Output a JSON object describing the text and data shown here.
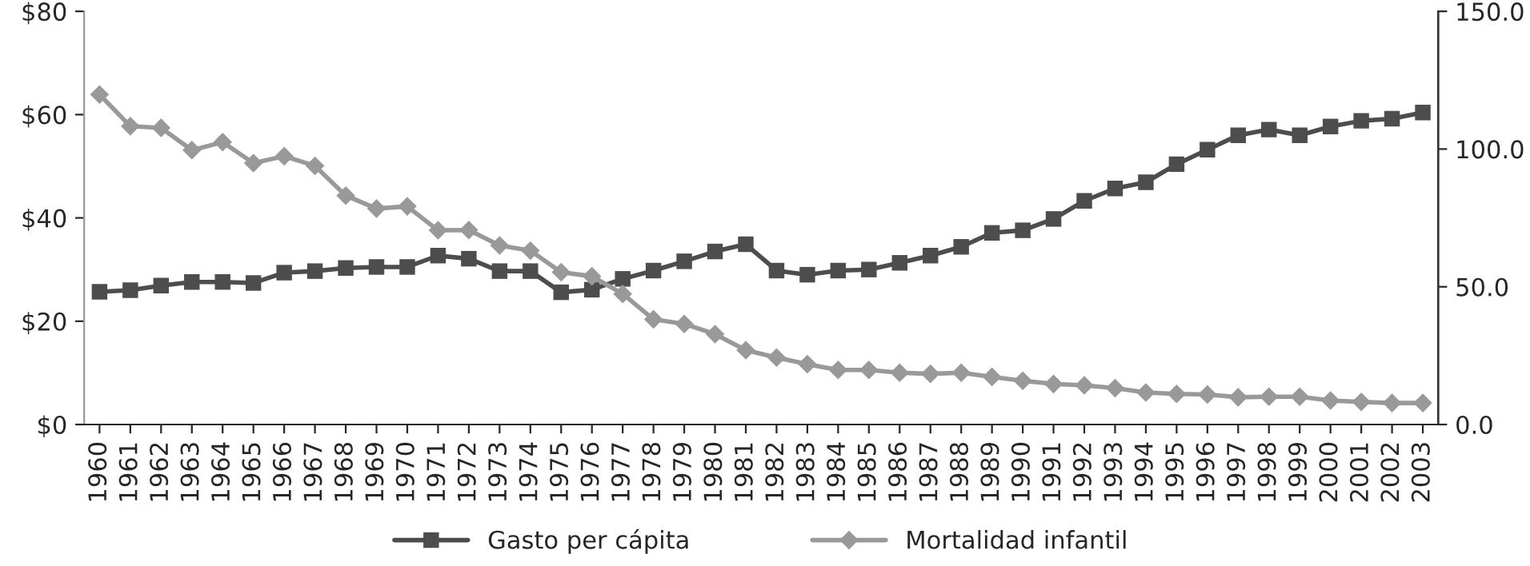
{
  "chart_data": {
    "type": "line",
    "categories": [
      "1960",
      "1961",
      "1962",
      "1963",
      "1964",
      "1965",
      "1966",
      "1967",
      "1968",
      "1969",
      "1970",
      "1971",
      "1972",
      "1973",
      "1974",
      "1975",
      "1976",
      "1977",
      "1978",
      "1979",
      "1980",
      "1981",
      "1982",
      "1983",
      "1984",
      "1985",
      "1986",
      "1987",
      "1988",
      "1989",
      "1990",
      "1991",
      "1992",
      "1993",
      "1994",
      "1995",
      "1996",
      "1997",
      "1998",
      "1999",
      "2000",
      "2001",
      "2002",
      "2003"
    ],
    "series": [
      {
        "name": "Gasto per cápita",
        "color": "#4d4d4d",
        "marker": "square",
        "values": [
          25.7,
          26.0,
          26.9,
          27.6,
          27.6,
          27.4,
          29.4,
          29.7,
          30.3,
          30.5,
          30.5,
          32.7,
          32.1,
          29.7,
          29.7,
          25.6,
          26.1,
          28.2,
          29.8,
          31.6,
          33.5,
          34.9,
          29.8,
          29.0,
          29.8,
          30.0,
          31.3,
          32.7,
          34.4,
          37.1,
          37.6,
          39.8,
          43.3,
          45.7,
          46.9,
          50.4,
          53.2,
          56.0,
          57.1,
          56.0,
          57.7,
          58.8,
          59.2,
          60.4
        ]
      },
      {
        "name": "Mortalidad infantil",
        "color": "#999999",
        "marker": "diamond",
        "axis": "y2",
        "values": [
          119.8,
          108.3,
          107.7,
          99.6,
          102.5,
          94.9,
          97.4,
          93.9,
          83.1,
          78.4,
          79.2,
          70.5,
          70.6,
          65.0,
          63.1,
          55.3,
          53.8,
          47.4,
          38.2,
          36.5,
          32.8,
          27.0,
          24.3,
          21.9,
          19.8,
          19.8,
          18.8,
          18.4,
          18.8,
          17.3,
          15.9,
          14.7,
          14.2,
          13.2,
          11.6,
          11.1,
          10.9,
          9.9,
          10.1,
          10.1,
          8.7,
          8.2,
          7.8,
          7.8
        ]
      }
    ],
    "ylim": [
      0,
      80
    ],
    "yticks": [
      {
        "value": 0,
        "label": "$0"
      },
      {
        "value": 20,
        "label": "$20"
      },
      {
        "value": 40,
        "label": "$40"
      },
      {
        "value": 60,
        "label": "$60"
      },
      {
        "value": 80,
        "label": "$80"
      }
    ],
    "y2lim": [
      0,
      150
    ],
    "y2ticks": [
      {
        "value": 0,
        "label": "0.0"
      },
      {
        "value": 50,
        "label": "50.0"
      },
      {
        "value": 100,
        "label": "100.0"
      },
      {
        "value": 150,
        "label": "150.0"
      }
    ],
    "grid": false,
    "legend": "bottom",
    "line_style": "solid"
  }
}
